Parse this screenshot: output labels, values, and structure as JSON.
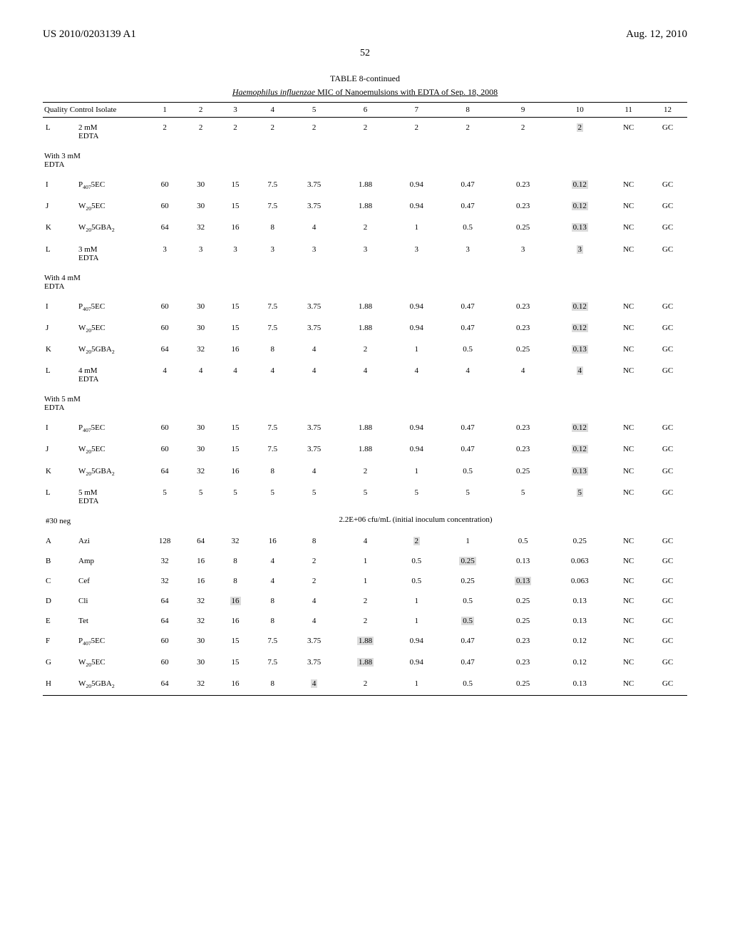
{
  "header": {
    "docNumber": "US 2010/0203139 A1",
    "date": "Aug. 12, 2010",
    "pageNumber": "52"
  },
  "table": {
    "title": "TABLE 8-continued",
    "subtitle_prefix": "Haemophilus influenzae",
    "subtitle_rest": " MIC of Nanoemulsions with EDTA of Sep. 18, 2008",
    "columnHeader": "Quality Control Isolate",
    "columns": [
      "1",
      "2",
      "3",
      "4",
      "5",
      "6",
      "7",
      "8",
      "9",
      "10",
      "11",
      "12"
    ],
    "rows": [
      {
        "label": "L",
        "sample_html": "2 mM<br>EDTA",
        "vals": [
          "2",
          "2",
          "2",
          "2",
          "2",
          "2",
          "2",
          "2",
          "2",
          "2",
          "NC",
          "GC"
        ],
        "hlIdx": [
          9
        ]
      },
      {
        "section": "With 3 mM<br>EDTA"
      },
      {
        "label": "I",
        "sample_html": "P<sub>407</sub>5EC",
        "vals": [
          "60",
          "30",
          "15",
          "7.5",
          "3.75",
          "1.88",
          "0.94",
          "0.47",
          "0.23",
          "0.12",
          "NC",
          "GC"
        ],
        "hlIdx": [
          9
        ]
      },
      {
        "label": "J",
        "sample_html": "W<sub>20</sub>5EC",
        "vals": [
          "60",
          "30",
          "15",
          "7.5",
          "3.75",
          "1.88",
          "0.94",
          "0.47",
          "0.23",
          "0.12",
          "NC",
          "GC"
        ],
        "hlIdx": [
          9
        ]
      },
      {
        "label": "K",
        "sample_html": "W<sub>20</sub>5GBA<sub>2</sub>",
        "vals": [
          "64",
          "32",
          "16",
          "8",
          "4",
          "2",
          "1",
          "0.5",
          "0.25",
          "0.13",
          "NC",
          "GC"
        ],
        "hlIdx": [
          9
        ]
      },
      {
        "label": "L",
        "sample_html": "3 mM<br>EDTA",
        "vals": [
          "3",
          "3",
          "3",
          "3",
          "3",
          "3",
          "3",
          "3",
          "3",
          "3",
          "NC",
          "GC"
        ],
        "hlIdx": [
          9
        ]
      },
      {
        "section": "With 4 mM<br>EDTA"
      },
      {
        "label": "I",
        "sample_html": "P<sub>407</sub>5EC",
        "vals": [
          "60",
          "30",
          "15",
          "7.5",
          "3.75",
          "1.88",
          "0.94",
          "0.47",
          "0.23",
          "0.12",
          "NC",
          "GC"
        ],
        "hlIdx": [
          9
        ]
      },
      {
        "label": "J",
        "sample_html": "W<sub>20</sub>5EC",
        "vals": [
          "60",
          "30",
          "15",
          "7.5",
          "3.75",
          "1.88",
          "0.94",
          "0.47",
          "0.23",
          "0.12",
          "NC",
          "GC"
        ],
        "hlIdx": [
          9
        ]
      },
      {
        "label": "K",
        "sample_html": "W<sub>20</sub>5GBA<sub>2</sub>",
        "vals": [
          "64",
          "32",
          "16",
          "8",
          "4",
          "2",
          "1",
          "0.5",
          "0.25",
          "0.13",
          "NC",
          "GC"
        ],
        "hlIdx": [
          9
        ]
      },
      {
        "label": "L",
        "sample_html": "4 mM<br>EDTA",
        "vals": [
          "4",
          "4",
          "4",
          "4",
          "4",
          "4",
          "4",
          "4",
          "4",
          "4",
          "NC",
          "GC"
        ],
        "hlIdx": [
          9
        ]
      },
      {
        "section": "With 5 mM<br>EDTA"
      },
      {
        "label": "I",
        "sample_html": "P<sub>407</sub>5EC",
        "vals": [
          "60",
          "30",
          "15",
          "7.5",
          "3.75",
          "1.88",
          "0.94",
          "0.47",
          "0.23",
          "0.12",
          "NC",
          "GC"
        ],
        "hlIdx": [
          9
        ]
      },
      {
        "label": "J",
        "sample_html": "W<sub>20</sub>5EC",
        "vals": [
          "60",
          "30",
          "15",
          "7.5",
          "3.75",
          "1.88",
          "0.94",
          "0.47",
          "0.23",
          "0.12",
          "NC",
          "GC"
        ],
        "hlIdx": [
          9
        ]
      },
      {
        "label": "K",
        "sample_html": "W<sub>20</sub>5GBA<sub>2</sub>",
        "vals": [
          "64",
          "32",
          "16",
          "8",
          "4",
          "2",
          "1",
          "0.5",
          "0.25",
          "0.13",
          "NC",
          "GC"
        ],
        "hlIdx": [
          9
        ]
      },
      {
        "label": "L",
        "sample_html": "5 mM<br>EDTA",
        "vals": [
          "5",
          "5",
          "5",
          "5",
          "5",
          "5",
          "5",
          "5",
          "5",
          "5",
          "NC",
          "GC"
        ],
        "hlIdx": [
          9
        ]
      },
      {
        "neg": "#30 neg",
        "inoculum": "2.2E+06 cfu/mL (initial inoculum concentration)"
      },
      {
        "label": "A",
        "sample_html": "Azi",
        "vals": [
          "128",
          "64",
          "32",
          "16",
          "8",
          "4",
          "2",
          "1",
          "0.5",
          "0.25",
          "NC",
          "GC"
        ],
        "hlIdx": [
          6
        ]
      },
      {
        "label": "B",
        "sample_html": "Amp",
        "vals": [
          "32",
          "16",
          "8",
          "4",
          "2",
          "1",
          "0.5",
          "0.25",
          "0.13",
          "0.063",
          "NC",
          "GC"
        ],
        "hlIdx": [
          7
        ]
      },
      {
        "label": "C",
        "sample_html": "Cef",
        "vals": [
          "32",
          "16",
          "8",
          "4",
          "2",
          "1",
          "0.5",
          "0.25",
          "0.13",
          "0.063",
          "NC",
          "GC"
        ],
        "hlIdx": [
          8
        ]
      },
      {
        "label": "D",
        "sample_html": "Cli",
        "vals": [
          "64",
          "32",
          "16",
          "8",
          "4",
          "2",
          "1",
          "0.5",
          "0.25",
          "0.13",
          "NC",
          "GC"
        ],
        "hlIdx": [
          2
        ]
      },
      {
        "label": "E",
        "sample_html": "Tet",
        "vals": [
          "64",
          "32",
          "16",
          "8",
          "4",
          "2",
          "1",
          "0.5",
          "0.25",
          "0.13",
          "NC",
          "GC"
        ],
        "hlIdx": [
          7
        ]
      },
      {
        "label": "F",
        "sample_html": "P<sub>407</sub>5EC",
        "vals": [
          "60",
          "30",
          "15",
          "7.5",
          "3.75",
          "1.88",
          "0.94",
          "0.47",
          "0.23",
          "0.12",
          "NC",
          "GC"
        ],
        "hlIdx": [
          5
        ]
      },
      {
        "label": "G",
        "sample_html": "W<sub>20</sub>5EC",
        "vals": [
          "60",
          "30",
          "15",
          "7.5",
          "3.75",
          "1.88",
          "0.94",
          "0.47",
          "0.23",
          "0.12",
          "NC",
          "GC"
        ],
        "hlIdx": [
          5
        ]
      },
      {
        "label": "H",
        "sample_html": "W<sub>20</sub>5GBA<sub>2</sub>",
        "vals": [
          "64",
          "32",
          "16",
          "8",
          "4",
          "2",
          "1",
          "0.5",
          "0.25",
          "0.13",
          "NC",
          "GC"
        ],
        "hlIdx": [
          4
        ]
      }
    ]
  }
}
